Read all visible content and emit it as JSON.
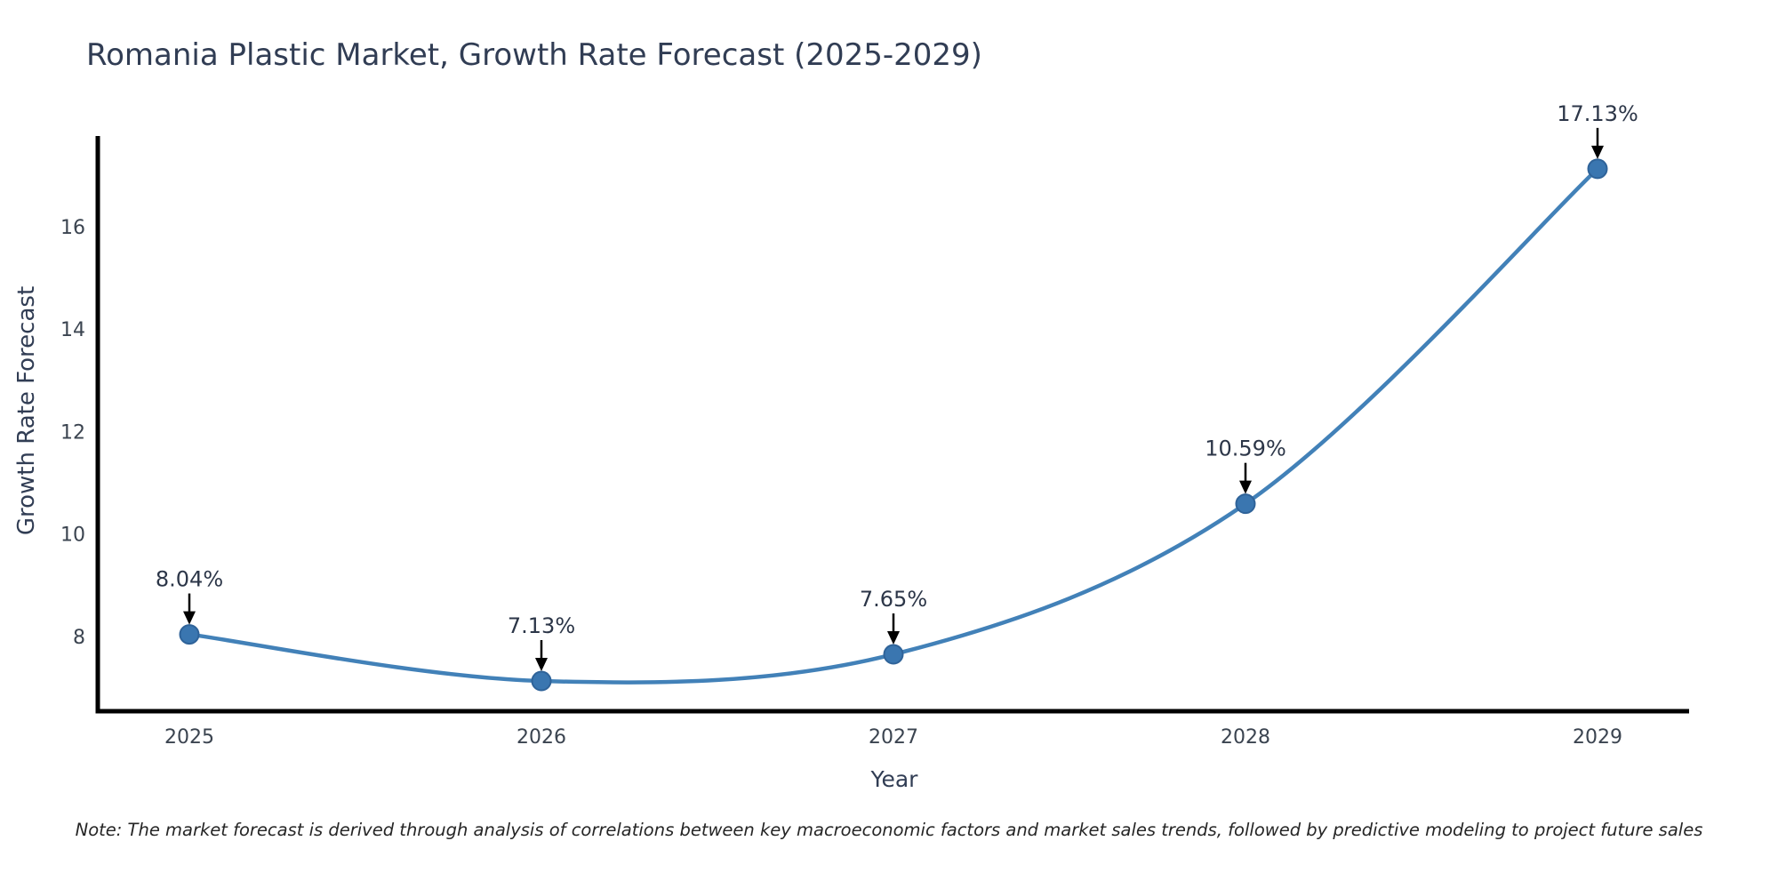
{
  "chart_data": {
    "type": "line",
    "title": "Romania Plastic Market, Growth Rate Forecast (2025-2029)",
    "xlabel": "Year",
    "ylabel": "Growth Rate Forecast",
    "categories": [
      "2025",
      "2026",
      "2027",
      "2028",
      "2029"
    ],
    "series": [
      {
        "name": "Growth Rate Forecast",
        "values": [
          8.04,
          7.13,
          7.65,
          10.59,
          17.13
        ],
        "point_labels": [
          "8.04%",
          "7.13%",
          "7.65%",
          "10.59%",
          "17.13%"
        ]
      }
    ],
    "yticks": [
      8,
      10,
      12,
      14,
      16
    ],
    "ylim": [
      6.54,
      17.77
    ],
    "grid": false,
    "legend": "none",
    "line_style": "smooth-spline",
    "colors": {
      "line": "#4281b8",
      "marker": "#3a76b0",
      "marker_edge": "#2f6399",
      "annotation_arrow": "#000000",
      "axis_spine": "#000000",
      "title_text": "#313d54",
      "tick_text": "#3b4450",
      "annotation_text": "#2c3648",
      "note_text": "#262626"
    },
    "note": "Note: The market forecast is derived through analysis of correlations between key macroeconomic factors and market sales trends, followed by predictive modeling to project future sales"
  }
}
